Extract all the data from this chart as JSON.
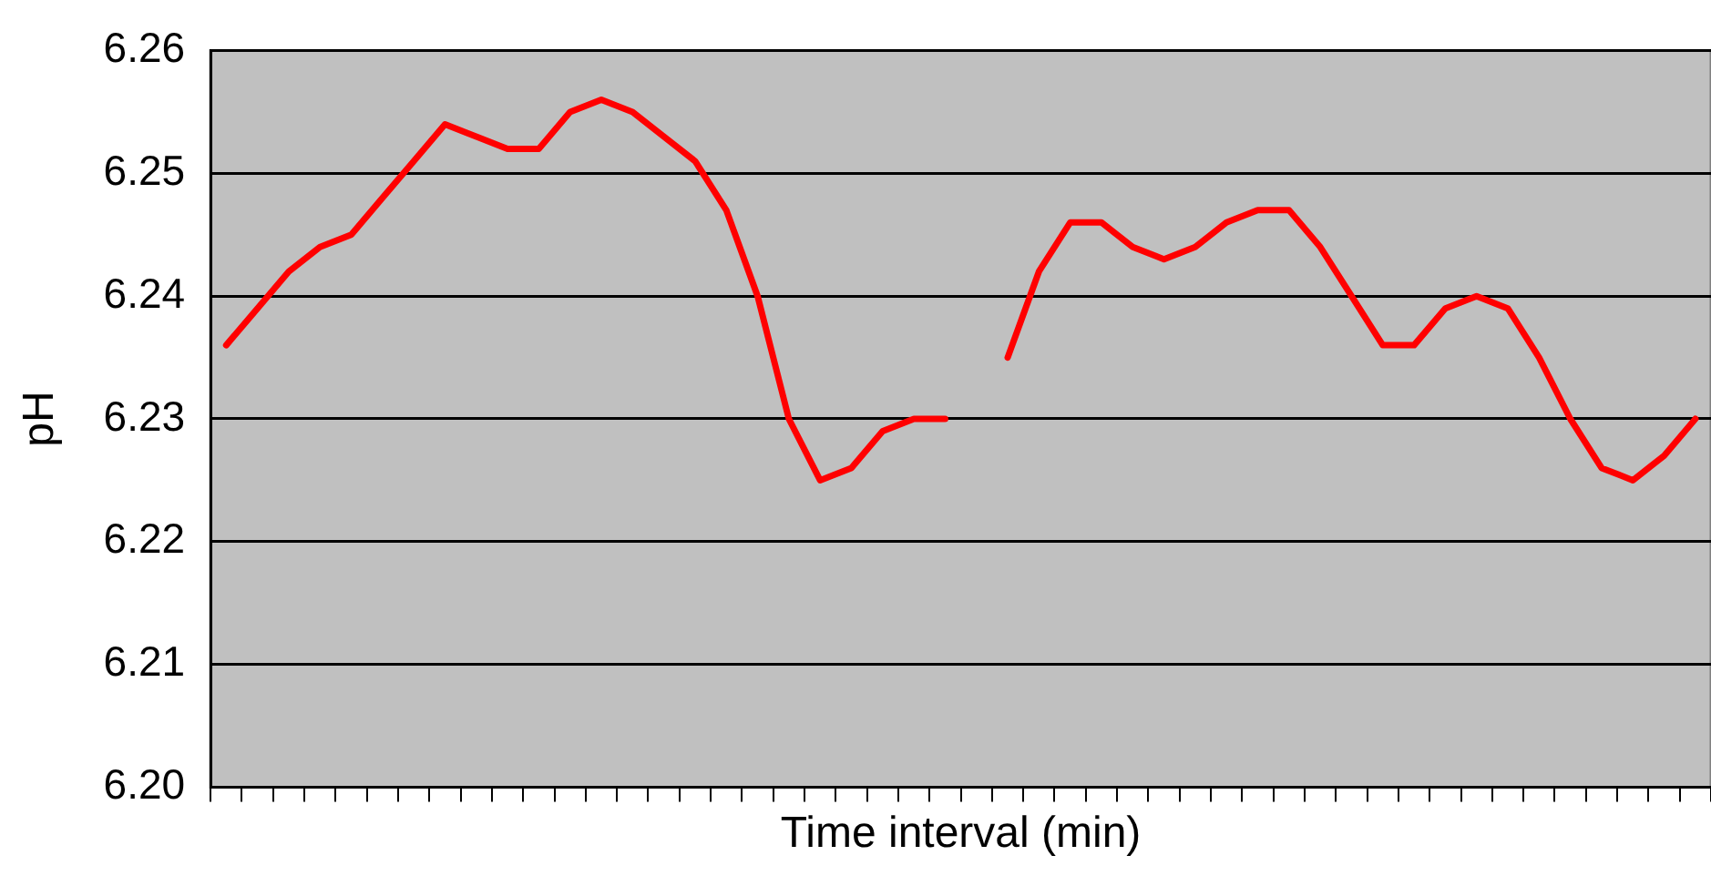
{
  "chart_data": {
    "type": "line",
    "xlabel": "Time interval (min)",
    "ylabel": "pH",
    "categories": [
      null,
      null,
      null,
      null,
      null,
      null,
      null,
      null,
      null,
      null,
      null,
      null,
      null,
      null,
      null,
      null,
      null,
      null,
      null,
      null,
      null,
      null,
      null,
      null,
      null,
      null,
      null,
      null,
      null,
      null,
      null,
      null,
      null,
      null,
      null,
      null,
      null,
      null,
      null,
      null,
      null,
      null,
      null,
      null,
      null,
      null,
      null,
      null
    ],
    "series": [
      {
        "color": "#ff0000",
        "values": [
          6.236,
          6.239,
          6.242,
          6.244,
          6.245,
          6.248,
          6.251,
          6.254,
          6.253,
          6.252,
          6.252,
          6.255,
          6.256,
          6.255,
          6.253,
          6.251,
          6.247,
          6.24,
          6.23,
          6.225,
          6.226,
          6.229,
          6.23,
          6.23,
          null,
          6.235,
          6.242,
          6.246,
          6.246,
          6.244,
          6.243,
          6.244,
          6.246,
          6.247,
          6.247,
          6.244,
          6.24,
          6.236,
          6.236,
          6.239,
          6.24,
          6.239,
          6.235,
          6.23,
          6.226,
          6.225,
          6.227,
          6.23
        ]
      }
    ],
    "ylim": [
      6.2,
      6.26
    ],
    "yticks": [
      {
        "value": 6.2,
        "label": "6.20"
      },
      {
        "value": 6.21,
        "label": "6.21"
      },
      {
        "value": 6.22,
        "label": "6.22"
      },
      {
        "value": 6.23,
        "label": "6.23"
      },
      {
        "value": 6.24,
        "label": "6.24"
      },
      {
        "value": 6.25,
        "label": "6.25"
      },
      {
        "value": 6.26,
        "label": "6.26"
      }
    ],
    "grid": "y",
    "legend": false,
    "marker": "none",
    "line_style": "solid",
    "tick_labels": "y"
  }
}
